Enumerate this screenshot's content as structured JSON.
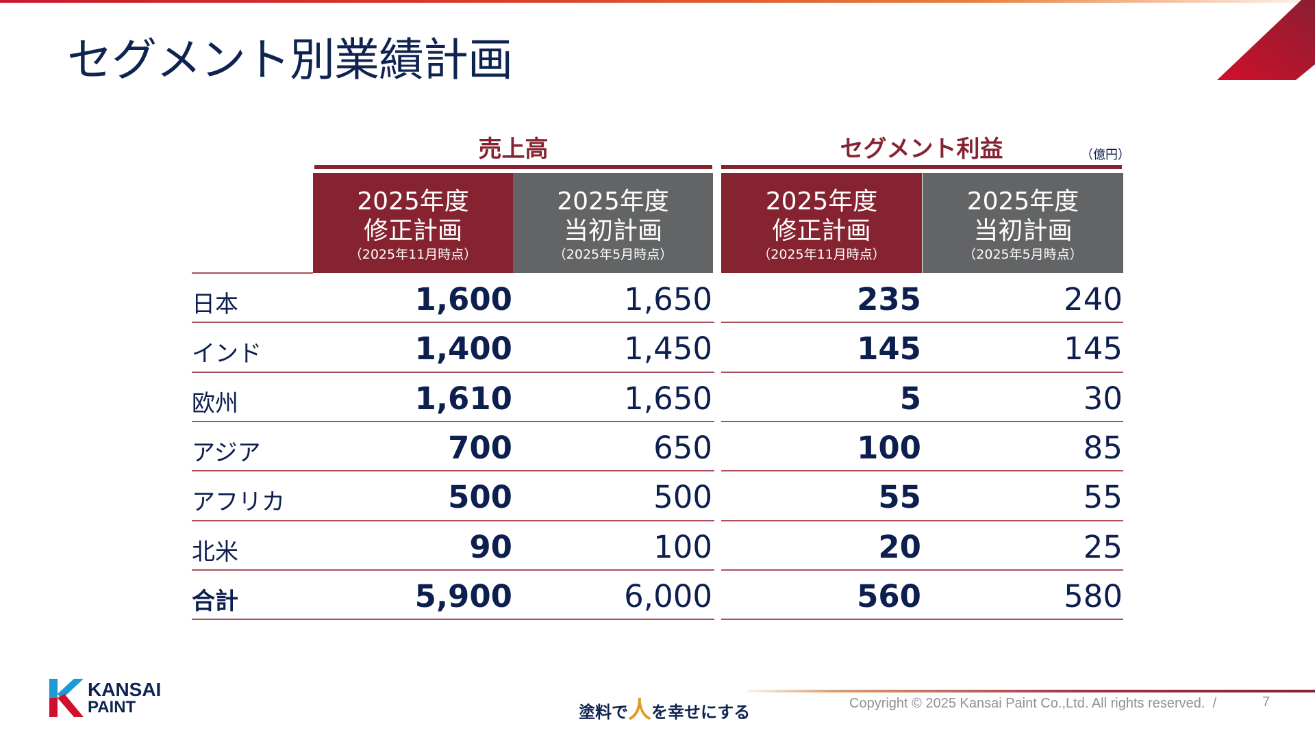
{
  "title": "セグメント別業績計画",
  "unit": "（億円）",
  "groups": [
    {
      "label": "売上高"
    },
    {
      "label": "セグメント利益"
    }
  ],
  "columns": [
    {
      "line1": "2025年度",
      "line2": "修正計画",
      "line3": "（2025年11月時点）"
    },
    {
      "line1": "2025年度",
      "line2": "当初計画",
      "line3": "（2025年5月時点）"
    },
    {
      "line1": "2025年度",
      "line2": "修正計画",
      "line3": "（2025年11月時点）"
    },
    {
      "line1": "2025年度",
      "line2": "当初計画",
      "line3": "（2025年5月時点）"
    }
  ],
  "rows": [
    {
      "label": "日本",
      "values": [
        "1,600",
        "1,650",
        "235",
        "240"
      ]
    },
    {
      "label": "インド",
      "values": [
        "1,400",
        "1,450",
        "145",
        "145"
      ]
    },
    {
      "label": "欧州",
      "values": [
        "1,610",
        "1,650",
        "5",
        "30"
      ]
    },
    {
      "label": "アジア",
      "values": [
        "700",
        "650",
        "100",
        "85"
      ]
    },
    {
      "label": "アフリカ",
      "values": [
        "500",
        "500",
        "55",
        "55"
      ]
    },
    {
      "label": "北米",
      "values": [
        "90",
        "100",
        "20",
        "25"
      ]
    },
    {
      "label": "合計",
      "values": [
        "5,900",
        "6,000",
        "560",
        "580"
      ]
    }
  ],
  "colors": {
    "revised": "#852331",
    "initial": "#636466",
    "text": "#0c1f4f"
  },
  "footer": {
    "logo_text_1": "KANSAI",
    "logo_text_2": "PAINT",
    "slogan_a": "塗料で",
    "slogan_b": "人",
    "slogan_c": "を幸せにする",
    "copyright": "Copyright © 2025 Kansai Paint Co.,Ltd. All rights reserved.",
    "separator": "/",
    "page": "7"
  }
}
